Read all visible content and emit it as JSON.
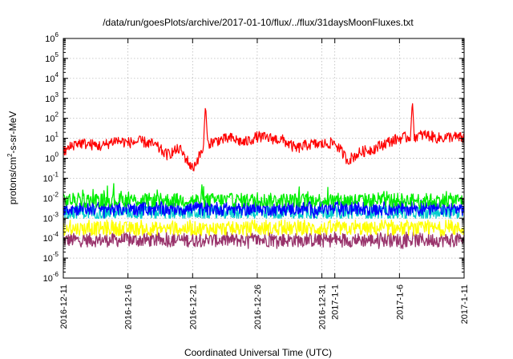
{
  "chart_data": {
    "type": "line",
    "title": "/data/run/goesPlots/archive/2017-01-10/flux/../flux/31daysMoonFluxes.txt",
    "xlabel": "Coordinated Universal Time (UTC)",
    "ylabel": "protons/cm²-s-sr-MeV",
    "ylabel_parts": [
      "protons/cm",
      "2",
      "-s-sr-MeV"
    ],
    "yscale": "log",
    "ylim": [
      1e-06,
      1000000.0
    ],
    "xlim": [
      "2016-12-11",
      "2017-01-11"
    ],
    "grid": true,
    "x_ticks": [
      {
        "label": "2016-12-11",
        "day": 0
      },
      {
        "label": "2016-12-16",
        "day": 5
      },
      {
        "label": "2016-12-21",
        "day": 10
      },
      {
        "label": "2016-12-26",
        "day": 15
      },
      {
        "label": "2016-12-31",
        "day": 20
      },
      {
        "label": "2017-1-1",
        "day": 21
      },
      {
        "label": "2017-1-6",
        "day": 26
      },
      {
        "label": "2017-1-11",
        "day": 31
      }
    ],
    "y_ticks": [
      {
        "exp": -6
      },
      {
        "exp": -5
      },
      {
        "exp": -4
      },
      {
        "exp": -3
      },
      {
        "exp": -2
      },
      {
        "exp": -1
      },
      {
        "exp": 0
      },
      {
        "exp": 1
      },
      {
        "exp": 2
      },
      {
        "exp": 3
      },
      {
        "exp": 4
      },
      {
        "exp": 5
      },
      {
        "exp": 6
      }
    ],
    "series": [
      {
        "color": "#ff0000",
        "x": [
          "2016-12-11",
          "2016-12-12",
          "2016-12-13",
          "2016-12-14",
          "2016-12-15",
          "2016-12-16",
          "2016-12-17",
          "2016-12-18",
          "2016-12-19",
          "2016-12-20",
          "2016-12-21",
          "2016-12-22",
          "2016-12-23",
          "2016-12-24",
          "2016-12-25",
          "2016-12-26",
          "2016-12-27",
          "2016-12-28",
          "2016-12-29",
          "2016-12-30",
          "2016-12-31",
          "2017-01-01",
          "2017-01-02",
          "2017-01-03",
          "2017-01-04",
          "2017-01-05",
          "2017-01-06",
          "2017-01-07",
          "2017-01-08",
          "2017-01-09",
          "2017-01-10",
          "2017-01-11"
        ],
        "values": [
          2,
          6,
          5,
          4,
          8,
          6,
          7,
          5,
          1.5,
          3,
          0.3,
          5,
          8,
          10,
          6,
          12,
          10,
          8,
          3,
          5,
          5,
          6,
          0.8,
          2,
          3,
          6,
          10,
          12,
          15,
          10,
          12,
          10
        ],
        "peaks": [
          {
            "x": "2016-12-22",
            "y": 500
          },
          {
            "x": "2017-01-07",
            "y": 800
          }
        ]
      },
      {
        "color": "#00ee00",
        "x": [
          "2016-12-11",
          "2017-01-11"
        ],
        "values": [
          0.008,
          0.008
        ],
        "range": [
          0.003,
          0.1
        ]
      },
      {
        "color": "#00cccc",
        "x": [
          "2016-12-11",
          "2017-01-11"
        ],
        "values": [
          0.002,
          0.002
        ],
        "range": [
          0.001,
          0.004
        ]
      },
      {
        "color": "#0000ff",
        "x": [
          "2016-12-11",
          "2017-01-11"
        ],
        "values": [
          0.003,
          0.003
        ],
        "range": [
          0.001,
          0.008
        ]
      },
      {
        "color": "#ffff00",
        "x": [
          "2016-12-11",
          "2017-01-11"
        ],
        "values": [
          0.0003,
          0.0003
        ],
        "range": [
          0.0001,
          0.0008
        ]
      },
      {
        "color": "#99336b",
        "x": [
          "2016-12-11",
          "2017-01-11"
        ],
        "values": [
          8e-05,
          8e-05
        ],
        "range": [
          3e-05,
          0.0002
        ]
      }
    ]
  }
}
